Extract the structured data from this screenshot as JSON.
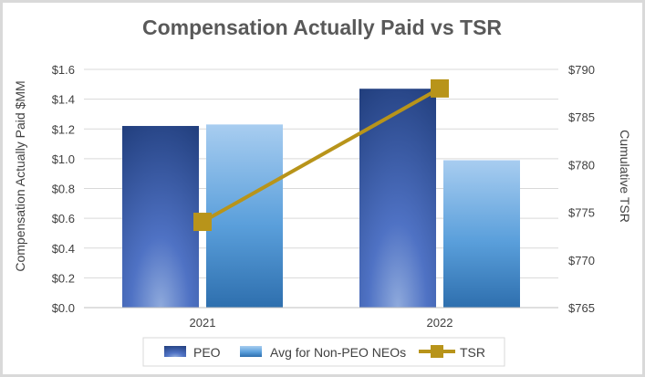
{
  "chart_data": {
    "type": "bar",
    "title": "Compensation Actually Paid vs TSR",
    "categories": [
      "2021",
      "2022"
    ],
    "ylabel": "Compensation Actually Paid $MM",
    "y2label": "Cumulative TSR",
    "ylim": [
      0,
      1.6
    ],
    "y2lim": [
      765,
      790
    ],
    "y_ticks": [
      "$0.0",
      "$0.2",
      "$0.4",
      "$0.6",
      "$0.8",
      "$1.0",
      "$1.2",
      "$1.4",
      "$1.6"
    ],
    "y2_ticks": [
      "$765",
      "$770",
      "$775",
      "$780",
      "$785",
      "$790"
    ],
    "grid": true,
    "legend_position": "bottom",
    "series": [
      {
        "name": "PEO",
        "kind": "bar",
        "axis": "left",
        "values": [
          1.22,
          1.47
        ],
        "color": "#2f4f9a"
      },
      {
        "name": "Avg for Non-PEO NEOs",
        "kind": "bar",
        "axis": "left",
        "values": [
          1.23,
          0.99
        ],
        "color": "#6fa8dc"
      },
      {
        "name": "TSR",
        "kind": "line",
        "axis": "right",
        "values": [
          774,
          788
        ],
        "color": "#b8941a"
      }
    ]
  }
}
